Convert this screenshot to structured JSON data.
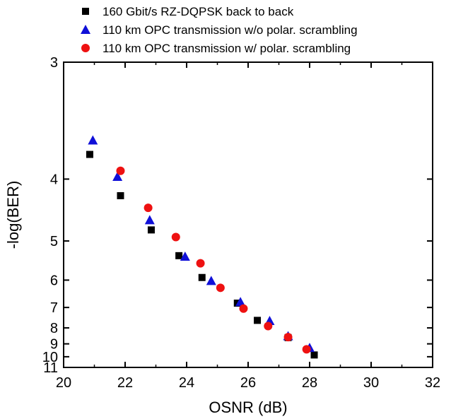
{
  "chart_data": {
    "type": "scatter",
    "xlabel": "OSNR (dB)",
    "ylabel": "-log(BER)",
    "xlim": [
      20,
      32
    ],
    "ylim": [
      3,
      11
    ],
    "y_scale": "reciprocal-log",
    "x_ticks": [
      20,
      22,
      24,
      26,
      28,
      30,
      32
    ],
    "y_ticks": [
      3,
      4,
      5,
      6,
      7,
      8,
      9,
      10,
      11
    ],
    "grid": false,
    "legend_position": "top",
    "series": [
      {
        "name": "160 Gbit/s RZ-DQPSK back to back",
        "marker": "square",
        "color": "#000000",
        "points": [
          {
            "x": 20.85,
            "y": 3.72
          },
          {
            "x": 21.85,
            "y": 4.22
          },
          {
            "x": 22.85,
            "y": 4.78
          },
          {
            "x": 23.75,
            "y": 5.33
          },
          {
            "x": 24.5,
            "y": 5.92
          },
          {
            "x": 25.65,
            "y": 6.82
          },
          {
            "x": 26.3,
            "y": 7.6
          },
          {
            "x": 27.3,
            "y": 8.58
          },
          {
            "x": 28.15,
            "y": 9.85
          }
        ]
      },
      {
        "name": "110 km OPC transmission w/o polar. scrambling",
        "marker": "triangle",
        "color": "#1010d8",
        "points": [
          {
            "x": 20.95,
            "y": 3.58
          },
          {
            "x": 21.75,
            "y": 3.97
          },
          {
            "x": 22.8,
            "y": 4.6
          },
          {
            "x": 23.95,
            "y": 5.35
          },
          {
            "x": 24.8,
            "y": 6.02
          },
          {
            "x": 25.75,
            "y": 6.77
          },
          {
            "x": 26.7,
            "y": 7.62
          },
          {
            "x": 27.3,
            "y": 8.48
          },
          {
            "x": 28.0,
            "y": 9.28
          }
        ]
      },
      {
        "name": "110 km OPC transmission w/ polar. scrambling",
        "marker": "circle",
        "color": "#ee1111",
        "points": [
          {
            "x": 21.85,
            "y": 3.9
          },
          {
            "x": 22.75,
            "y": 4.4
          },
          {
            "x": 23.65,
            "y": 4.92
          },
          {
            "x": 24.45,
            "y": 5.52
          },
          {
            "x": 25.1,
            "y": 6.25
          },
          {
            "x": 25.85,
            "y": 7.05
          },
          {
            "x": 26.65,
            "y": 7.9
          },
          {
            "x": 27.3,
            "y": 8.55
          },
          {
            "x": 27.9,
            "y": 9.4
          }
        ]
      }
    ]
  }
}
